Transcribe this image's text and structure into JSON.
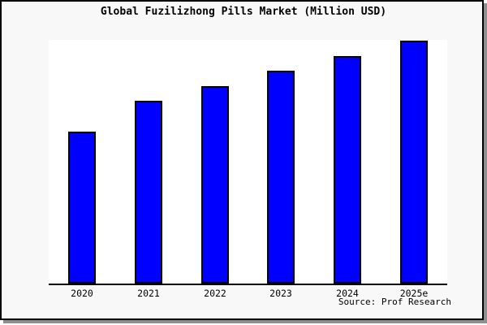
{
  "title": "Global Fuzilizhong Pills Market (Million USD)",
  "source_note": "Source: Prof Research",
  "colors": {
    "bar_fill": "#0000ff",
    "bar_border": "#000000",
    "panel_background": "#f8f8f8",
    "plot_background": "#ffffff",
    "axis": "#000000",
    "frame_border": "#000000",
    "frame_shadow": "#8f8f8f"
  },
  "chart_data": {
    "type": "bar",
    "title": "Global Fuzilizhong Pills Market (Million USD)",
    "categories": [
      "2020",
      "2021",
      "2022",
      "2023",
      "2024",
      "2025e"
    ],
    "values": [
      62.6,
      75.1,
      81.4,
      87.6,
      93.6,
      100
    ],
    "values_note": "No numeric y-axis shown; values are relative heights as % of the tallest (2025e) bar",
    "series_name": "Global Fuzilizhong Pills Market (Million USD)",
    "xlabel": "",
    "ylabel": "",
    "ylim": [
      0,
      100.3
    ],
    "gridlines": false,
    "legend": false,
    "y_axis_ticks": false,
    "annotation": "Source: Prof Research"
  }
}
